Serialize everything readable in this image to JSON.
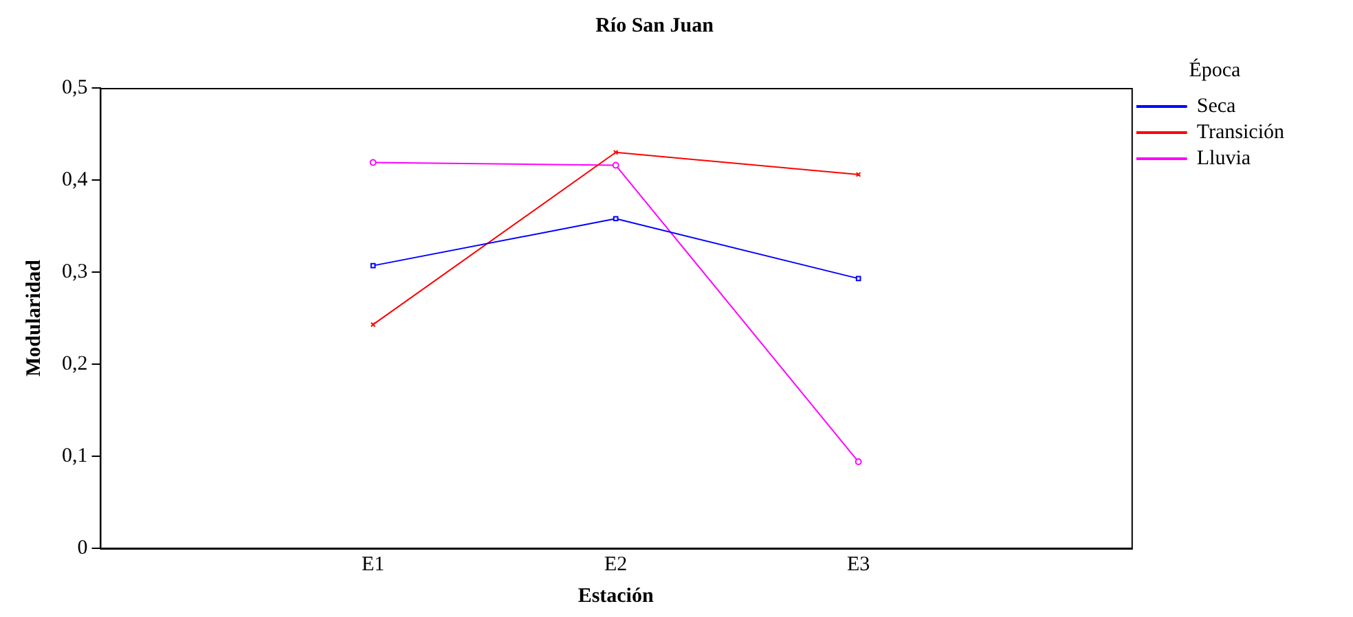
{
  "chart_data": {
    "type": "line",
    "title": "Río San Juan",
    "xlabel": "Estación",
    "ylabel": "Modularidad",
    "legend_title": "Época",
    "legend": "top right",
    "grid": false,
    "categories": [
      "E1",
      "E2",
      "E3"
    ],
    "ylim": [
      0,
      0.5
    ],
    "yticks": [
      {
        "value": 0,
        "label": "0"
      },
      {
        "value": 0.1,
        "label": "0,1"
      },
      {
        "value": 0.2,
        "label": "0,2"
      },
      {
        "value": 0.3,
        "label": "0,3"
      },
      {
        "value": 0.4,
        "label": "0,4"
      },
      {
        "value": 0.5,
        "label": "0,5"
      }
    ],
    "series": [
      {
        "name": "Seca",
        "color": "#0000ff",
        "marker": "square",
        "values": [
          0.307,
          0.358,
          0.293
        ]
      },
      {
        "name": "Transición",
        "color": "#ff0000",
        "marker": "cross",
        "values": [
          0.243,
          0.43,
          0.406
        ]
      },
      {
        "name": "Lluvia",
        "color": "#ff00ff",
        "marker": "circle",
        "values": [
          0.419,
          0.416,
          0.094
        ]
      }
    ]
  }
}
